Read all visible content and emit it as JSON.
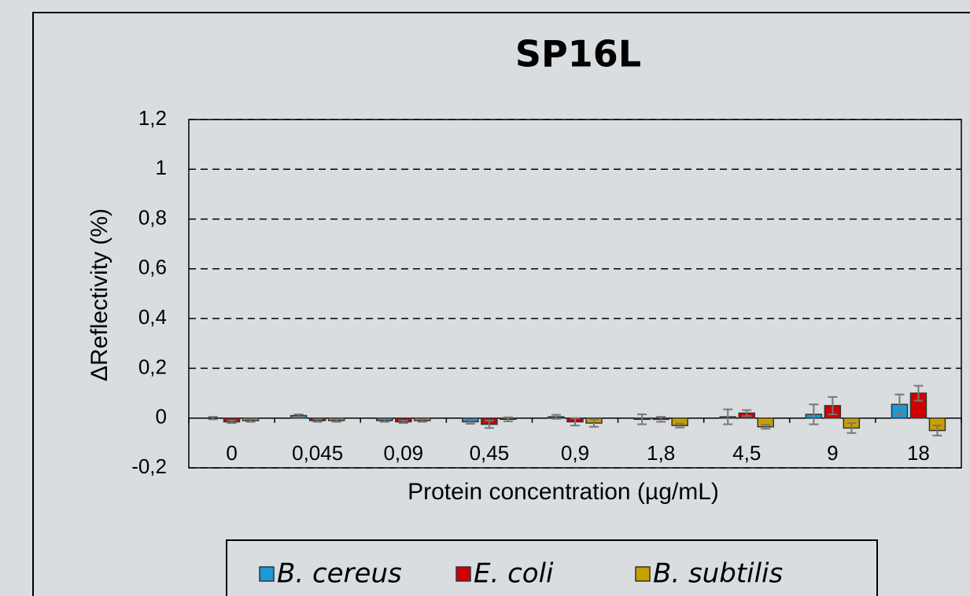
{
  "chart_data": {
    "type": "bar",
    "title": "SP16L",
    "xlabel": "Protein concentration (µg/mL)",
    "ylabel": "ΔReflectivity (%)",
    "categories": [
      "0",
      "0,045",
      "0,09",
      "0,45",
      "0,9",
      "1,8",
      "4,5",
      "9",
      "18"
    ],
    "series": [
      {
        "name": "B. cereus",
        "color": "#1a9ad6",
        "values": [
          0.0,
          0.01,
          -0.01,
          -0.015,
          0.005,
          -0.005,
          0.005,
          0.015,
          0.055
        ],
        "errors": [
          0.005,
          0.005,
          0.005,
          0.008,
          0.008,
          0.02,
          0.03,
          0.04,
          0.04
        ]
      },
      {
        "name": "E. coli",
        "color": "#d00000",
        "values": [
          -0.015,
          -0.01,
          -0.015,
          -0.025,
          -0.015,
          -0.005,
          0.02,
          0.05,
          0.1
        ],
        "errors": [
          0.005,
          0.005,
          0.005,
          0.015,
          0.015,
          0.01,
          0.012,
          0.035,
          0.03
        ]
      },
      {
        "name": "B. subtilis",
        "color": "#c9a000",
        "values": [
          -0.01,
          -0.01,
          -0.01,
          -0.005,
          -0.02,
          -0.03,
          -0.035,
          -0.04,
          -0.05
        ],
        "errors": [
          0.005,
          0.005,
          0.005,
          0.008,
          0.015,
          0.008,
          0.008,
          0.02,
          0.02
        ]
      }
    ],
    "ylim": [
      -0.2,
      1.2
    ],
    "yticks": [
      {
        "value": -0.2,
        "label": "-0,2"
      },
      0,
      {
        "value": 0.2,
        "label": "0,2"
      },
      {
        "value": 0.4,
        "label": "0,4"
      },
      {
        "value": 0.6,
        "label": "0,6"
      },
      {
        "value": 0.8,
        "label": "0,8"
      },
      1,
      {
        "value": 1.2,
        "label": "1,2"
      }
    ],
    "grid": true,
    "legend": "bottom"
  }
}
